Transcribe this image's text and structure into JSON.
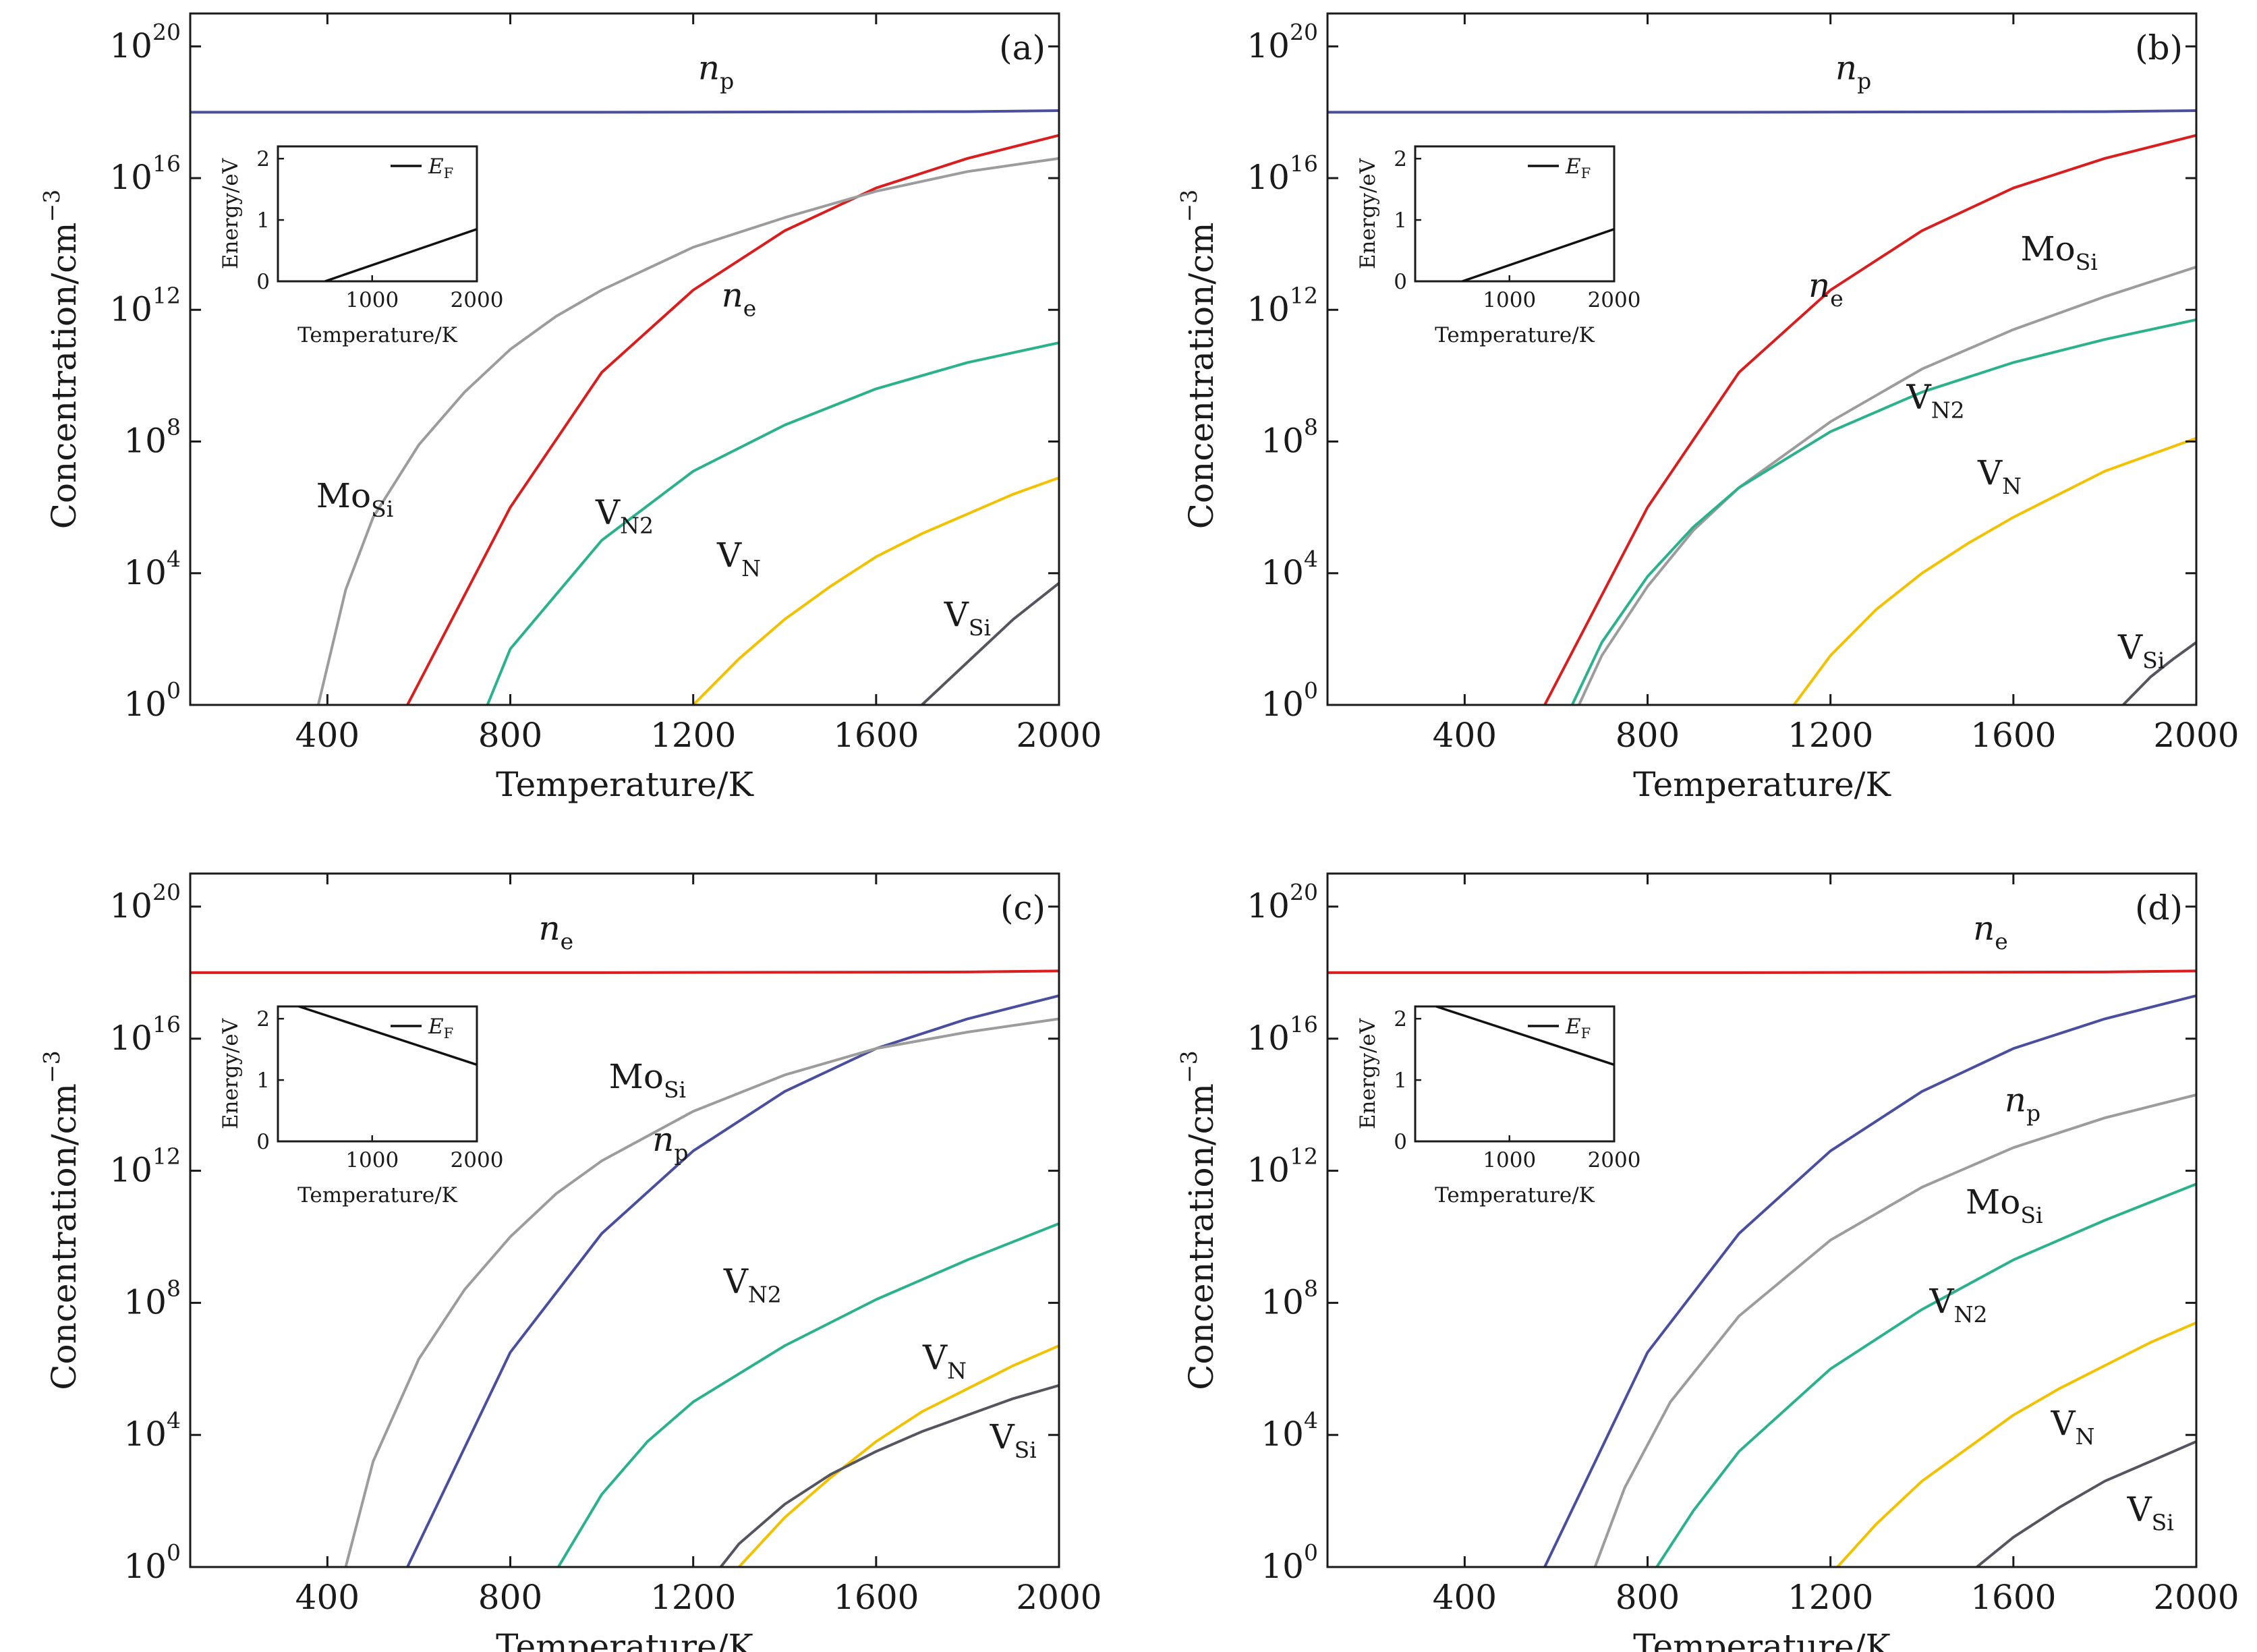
{
  "figure": {
    "x_axis_label": "Temperature/K",
    "y_axis_label": "Concentration/cm",
    "y_axis_label_exponent": "−3",
    "inset_x_axis_label": "Temperature/K",
    "inset_y_axis_label": "Energy/eV"
  },
  "colors": {
    "ne": "#d81e1e",
    "np": "#4a4e9e",
    "MoSi": "#9c9c9c",
    "VN2": "#2bb28c",
    "VN": "#f2c200",
    "VSi": "#55555f",
    "EF": "#111111"
  },
  "chart_data": [
    {
      "panel": "(a)",
      "type": "line",
      "x_label": "Temperature/K",
      "y_label": "Concentration/cm−3",
      "y_scale": "log10",
      "xlim": [
        100,
        2000
      ],
      "ylim": [
        1,
        1e+21
      ],
      "x_ticks": [
        400,
        800,
        1200,
        1600,
        2000
      ],
      "y_ticks": [
        {
          "exp": 0,
          "base": "10",
          "sup": "0"
        },
        {
          "exp": 4,
          "base": "10",
          "sup": "4"
        },
        {
          "exp": 8,
          "base": "10",
          "sup": "8"
        },
        {
          "exp": 12,
          "base": "10",
          "sup": "12"
        },
        {
          "exp": 16,
          "base": "10",
          "sup": "16"
        },
        {
          "exp": 20,
          "base": "10",
          "sup": "20"
        }
      ],
      "series": [
        {
          "key": "np",
          "x": [
            100,
            1000,
            1800,
            2000
          ],
          "log10_y": [
            18.0,
            18.0,
            18.02,
            18.05
          ]
        },
        {
          "key": "ne",
          "x": [
            575,
            800,
            1000,
            1200,
            1400,
            1600,
            1800,
            2000
          ],
          "log10_y": [
            0,
            6.0,
            10.1,
            12.6,
            14.4,
            15.7,
            16.6,
            17.3
          ]
        },
        {
          "key": "MoSi",
          "x": [
            380,
            440,
            500,
            600,
            700,
            800,
            900,
            1000,
            1200,
            1400,
            1600,
            1800,
            2000
          ],
          "log10_y": [
            0,
            3.5,
            5.7,
            7.9,
            9.5,
            10.8,
            11.8,
            12.6,
            13.9,
            14.8,
            15.6,
            16.2,
            16.6
          ]
        },
        {
          "key": "VN2",
          "x": [
            750,
            800,
            1000,
            1200,
            1400,
            1600,
            1800,
            2000
          ],
          "log10_y": [
            0,
            1.7,
            5.0,
            7.1,
            8.5,
            9.6,
            10.4,
            11.0
          ]
        },
        {
          "key": "VN",
          "x": [
            1200,
            1300,
            1400,
            1500,
            1600,
            1700,
            1800,
            1900,
            2000
          ],
          "log10_y": [
            0,
            1.4,
            2.6,
            3.6,
            4.5,
            5.2,
            5.8,
            6.4,
            6.9
          ]
        },
        {
          "key": "VSi",
          "x": [
            1700,
            1800,
            1900,
            2000
          ],
          "log10_y": [
            0,
            1.3,
            2.6,
            3.7
          ]
        }
      ],
      "curve_labels": [
        {
          "key": "np",
          "base": "n",
          "sub": "p",
          "italic": true,
          "x": 1250,
          "log10_y": 19.0
        },
        {
          "key": "ne",
          "base": "n",
          "sub": "e",
          "italic": true,
          "x": 1300,
          "log10_y": 12.1
        },
        {
          "key": "MoSi",
          "base": "Mo",
          "sub": "Si",
          "italic": false,
          "x": 460,
          "log10_y": 6.0
        },
        {
          "key": "VN2",
          "base": "V",
          "sub": "N2",
          "italic": false,
          "x": 1050,
          "log10_y": 5.5
        },
        {
          "key": "VN",
          "base": "V",
          "sub": "N",
          "italic": false,
          "x": 1300,
          "log10_y": 4.2
        },
        {
          "key": "VSi",
          "base": "V",
          "sub": "Si",
          "italic": false,
          "x": 1800,
          "log10_y": 2.4
        }
      ],
      "inset": {
        "legend": {
          "base": "E",
          "sub": "F"
        },
        "xlim": [
          100,
          2000
        ],
        "ylim": [
          0,
          2.2
        ],
        "x_ticks": [
          1000,
          2000
        ],
        "y_ticks": [
          0,
          1,
          2
        ],
        "x": [
          550,
          2000
        ],
        "y": [
          0,
          0.85
        ]
      }
    },
    {
      "panel": "(b)",
      "type": "line",
      "x_label": "Temperature/K",
      "y_label": "Concentration/cm−3",
      "y_scale": "log10",
      "xlim": [
        100,
        2000
      ],
      "ylim": [
        1,
        1e+21
      ],
      "x_ticks": [
        400,
        800,
        1200,
        1600,
        2000
      ],
      "y_ticks": [
        {
          "exp": 0,
          "base": "10",
          "sup": "0"
        },
        {
          "exp": 4,
          "base": "10",
          "sup": "4"
        },
        {
          "exp": 8,
          "base": "10",
          "sup": "8"
        },
        {
          "exp": 12,
          "base": "10",
          "sup": "12"
        },
        {
          "exp": 16,
          "base": "10",
          "sup": "16"
        },
        {
          "exp": 20,
          "base": "10",
          "sup": "20"
        }
      ],
      "series": [
        {
          "key": "np",
          "x": [
            100,
            1000,
            1800,
            2000
          ],
          "log10_y": [
            18.0,
            18.0,
            18.02,
            18.05
          ]
        },
        {
          "key": "ne",
          "x": [
            575,
            800,
            1000,
            1200,
            1400,
            1600,
            1800,
            2000
          ],
          "log10_y": [
            0,
            6.0,
            10.1,
            12.6,
            14.4,
            15.7,
            16.6,
            17.3
          ]
        },
        {
          "key": "MoSi",
          "x": [
            650,
            700,
            800,
            900,
            1000,
            1200,
            1400,
            1600,
            1800,
            2000
          ],
          "log10_y": [
            0,
            1.5,
            3.6,
            5.3,
            6.6,
            8.6,
            10.2,
            11.4,
            12.4,
            13.3
          ]
        },
        {
          "key": "VN2",
          "x": [
            635,
            700,
            800,
            900,
            1000,
            1200,
            1400,
            1600,
            1800,
            2000
          ],
          "log10_y": [
            0,
            1.9,
            3.9,
            5.4,
            6.6,
            8.3,
            9.5,
            10.4,
            11.1,
            11.7
          ]
        },
        {
          "key": "VN",
          "x": [
            1120,
            1200,
            1300,
            1400,
            1500,
            1600,
            1700,
            1800,
            1900,
            2000
          ],
          "log10_y": [
            0,
            1.5,
            2.9,
            4.0,
            4.9,
            5.7,
            6.4,
            7.1,
            7.6,
            8.1
          ]
        },
        {
          "key": "VSi",
          "x": [
            1840,
            1900,
            1950,
            2000
          ],
          "log10_y": [
            0,
            0.85,
            1.4,
            1.9
          ]
        }
      ],
      "curve_labels": [
        {
          "key": "np",
          "base": "n",
          "sub": "p",
          "italic": true,
          "x": 1250,
          "log10_y": 19.0
        },
        {
          "key": "ne",
          "base": "n",
          "sub": "e",
          "italic": true,
          "x": 1190,
          "log10_y": 12.4
        },
        {
          "key": "MoSi",
          "base": "Mo",
          "sub": "Si",
          "italic": false,
          "x": 1700,
          "log10_y": 13.5
        },
        {
          "key": "VN2",
          "base": "V",
          "sub": "N2",
          "italic": false,
          "x": 1430,
          "log10_y": 9.0
        },
        {
          "key": "VN",
          "base": "V",
          "sub": "N",
          "italic": false,
          "x": 1570,
          "log10_y": 6.7
        },
        {
          "key": "VSi",
          "base": "V",
          "sub": "Si",
          "italic": false,
          "x": 1880,
          "log10_y": 1.4
        }
      ],
      "inset": {
        "legend": {
          "base": "E",
          "sub": "F"
        },
        "xlim": [
          100,
          2000
        ],
        "ylim": [
          0,
          2.2
        ],
        "x_ticks": [
          1000,
          2000
        ],
        "y_ticks": [
          0,
          1,
          2
        ],
        "x": [
          550,
          2000
        ],
        "y": [
          0,
          0.85
        ]
      }
    },
    {
      "panel": "(c)",
      "type": "line",
      "x_label": "Temperature/K",
      "y_label": "Concentration/cm−3",
      "y_scale": "log10",
      "xlim": [
        100,
        2000
      ],
      "ylim": [
        1,
        1e+21
      ],
      "x_ticks": [
        400,
        800,
        1200,
        1600,
        2000
      ],
      "y_ticks": [
        {
          "exp": 0,
          "base": "10",
          "sup": "0"
        },
        {
          "exp": 4,
          "base": "10",
          "sup": "4"
        },
        {
          "exp": 8,
          "base": "10",
          "sup": "8"
        },
        {
          "exp": 12,
          "base": "10",
          "sup": "12"
        },
        {
          "exp": 16,
          "base": "10",
          "sup": "16"
        },
        {
          "exp": 20,
          "base": "10",
          "sup": "20"
        }
      ],
      "series": [
        {
          "key": "ne",
          "x": [
            100,
            1000,
            1800,
            2000
          ],
          "log10_y": [
            18.0,
            18.0,
            18.02,
            18.05
          ]
        },
        {
          "key": "np",
          "x": [
            575,
            800,
            1000,
            1200,
            1400,
            1600,
            1800,
            2000
          ],
          "log10_y": [
            0,
            6.5,
            10.1,
            12.6,
            14.4,
            15.7,
            16.6,
            17.3
          ]
        },
        {
          "key": "MoSi",
          "x": [
            440,
            500,
            600,
            700,
            800,
            900,
            1000,
            1200,
            1400,
            1600,
            1800,
            2000
          ],
          "log10_y": [
            0,
            3.2,
            6.3,
            8.4,
            10.0,
            11.3,
            12.3,
            13.8,
            14.9,
            15.7,
            16.2,
            16.6
          ]
        },
        {
          "key": "VN2",
          "x": [
            905,
            1000,
            1100,
            1200,
            1400,
            1600,
            1800,
            2000
          ],
          "log10_y": [
            0,
            2.2,
            3.8,
            5.0,
            6.7,
            8.1,
            9.3,
            10.4
          ]
        },
        {
          "key": "VN",
          "x": [
            1300,
            1400,
            1500,
            1600,
            1700,
            1800,
            1900,
            2000
          ],
          "log10_y": [
            0,
            1.5,
            2.7,
            3.8,
            4.7,
            5.4,
            6.1,
            6.7
          ]
        },
        {
          "key": "VSi",
          "x": [
            1260,
            1300,
            1400,
            1500,
            1600,
            1700,
            1800,
            1900,
            2000
          ],
          "log10_y": [
            0,
            0.7,
            1.9,
            2.8,
            3.5,
            4.1,
            4.6,
            5.1,
            5.5
          ]
        }
      ],
      "curve_labels": [
        {
          "key": "ne",
          "base": "n",
          "sub": "e",
          "italic": true,
          "x": 900,
          "log10_y": 19.0
        },
        {
          "key": "MoSi",
          "base": "Mo",
          "sub": "Si",
          "italic": false,
          "x": 1100,
          "log10_y": 14.5
        },
        {
          "key": "np",
          "base": "n",
          "sub": "p",
          "italic": true,
          "x": 1150,
          "log10_y": 12.6
        },
        {
          "key": "VN2",
          "base": "V",
          "sub": "N2",
          "italic": false,
          "x": 1330,
          "log10_y": 8.3
        },
        {
          "key": "VN",
          "base": "V",
          "sub": "N",
          "italic": false,
          "x": 1750,
          "log10_y": 6.0
        },
        {
          "key": "VSi",
          "base": "V",
          "sub": "Si",
          "italic": false,
          "x": 1900,
          "log10_y": 3.6
        }
      ],
      "inset": {
        "legend": {
          "base": "E",
          "sub": "F"
        },
        "xlim": [
          100,
          2000
        ],
        "ylim": [
          0,
          2.2
        ],
        "x_ticks": [
          1000,
          2000
        ],
        "y_ticks": [
          0,
          1,
          2
        ],
        "x": [
          300,
          2000
        ],
        "y": [
          2.2,
          1.25
        ]
      }
    },
    {
      "panel": "(d)",
      "type": "line",
      "x_label": "Temperature/K",
      "y_label": "Concentration/cm−3",
      "y_scale": "log10",
      "xlim": [
        100,
        2000
      ],
      "ylim": [
        1,
        1e+21
      ],
      "x_ticks": [
        400,
        800,
        1200,
        1600,
        2000
      ],
      "y_ticks": [
        {
          "exp": 0,
          "base": "10",
          "sup": "0"
        },
        {
          "exp": 4,
          "base": "10",
          "sup": "4"
        },
        {
          "exp": 8,
          "base": "10",
          "sup": "8"
        },
        {
          "exp": 12,
          "base": "10",
          "sup": "12"
        },
        {
          "exp": 16,
          "base": "10",
          "sup": "16"
        },
        {
          "exp": 20,
          "base": "10",
          "sup": "20"
        }
      ],
      "series": [
        {
          "key": "ne",
          "x": [
            100,
            1000,
            1800,
            2000
          ],
          "log10_y": [
            18.0,
            18.0,
            18.02,
            18.05
          ]
        },
        {
          "key": "np",
          "x": [
            575,
            800,
            1000,
            1200,
            1400,
            1600,
            1800,
            2000
          ],
          "log10_y": [
            0,
            6.5,
            10.1,
            12.6,
            14.4,
            15.7,
            16.6,
            17.3
          ]
        },
        {
          "key": "MoSi",
          "x": [
            685,
            750,
            850,
            1000,
            1200,
            1400,
            1600,
            1800,
            2000
          ],
          "log10_y": [
            0,
            2.4,
            5.0,
            7.6,
            9.9,
            11.5,
            12.7,
            13.6,
            14.3
          ]
        },
        {
          "key": "VN2",
          "x": [
            820,
            900,
            1000,
            1200,
            1400,
            1600,
            1800,
            2000
          ],
          "log10_y": [
            0,
            1.7,
            3.5,
            6.0,
            7.8,
            9.3,
            10.5,
            11.6
          ]
        },
        {
          "key": "VN",
          "x": [
            1215,
            1300,
            1400,
            1500,
            1600,
            1700,
            1800,
            1900,
            2000
          ],
          "log10_y": [
            0,
            1.3,
            2.6,
            3.6,
            4.6,
            5.4,
            6.1,
            6.8,
            7.4
          ]
        },
        {
          "key": "VSi",
          "x": [
            1520,
            1600,
            1700,
            1800,
            1900,
            2000
          ],
          "log10_y": [
            0,
            0.9,
            1.8,
            2.6,
            3.2,
            3.8
          ]
        }
      ],
      "curve_labels": [
        {
          "key": "ne",
          "base": "n",
          "sub": "e",
          "italic": true,
          "x": 1550,
          "log10_y": 19.0
        },
        {
          "key": "np",
          "base": "n",
          "sub": "p",
          "italic": true,
          "x": 1620,
          "log10_y": 13.8
        },
        {
          "key": "MoSi",
          "base": "Mo",
          "sub": "Si",
          "italic": false,
          "x": 1580,
          "log10_y": 10.7
        },
        {
          "key": "VN2",
          "base": "V",
          "sub": "N2",
          "italic": false,
          "x": 1480,
          "log10_y": 7.7
        },
        {
          "key": "VN",
          "base": "V",
          "sub": "N",
          "italic": false,
          "x": 1730,
          "log10_y": 4.0
        },
        {
          "key": "VSi",
          "base": "V",
          "sub": "Si",
          "italic": false,
          "x": 1900,
          "log10_y": 1.4
        }
      ],
      "inset": {
        "legend": {
          "base": "E",
          "sub": "F"
        },
        "xlim": [
          100,
          2000
        ],
        "ylim": [
          0,
          2.2
        ],
        "x_ticks": [
          1000,
          2000
        ],
        "y_ticks": [
          0,
          1,
          2
        ],
        "x": [
          300,
          2000
        ],
        "y": [
          2.2,
          1.25
        ]
      }
    }
  ]
}
